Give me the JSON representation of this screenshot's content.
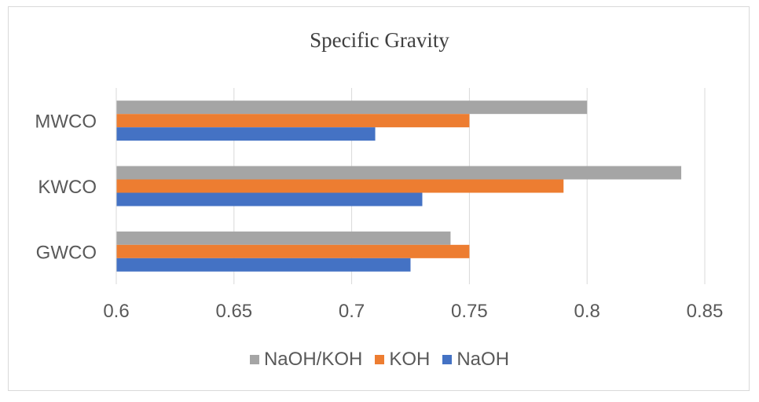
{
  "chart_data": {
    "type": "bar",
    "orientation": "horizontal",
    "title": "Specific Gravity",
    "categories": [
      "MWCO",
      "KWCO",
      "GWCO"
    ],
    "series": [
      {
        "name": "NaOH/KOH",
        "color": "#a5a5a5",
        "values": [
          0.8,
          0.84,
          0.742
        ]
      },
      {
        "name": "KOH",
        "color": "#ed7d31",
        "values": [
          0.75,
          0.79,
          0.75
        ]
      },
      {
        "name": "NaOH",
        "color": "#4472c4",
        "values": [
          0.71,
          0.73,
          0.725
        ]
      }
    ],
    "xlim": [
      0.6,
      0.85
    ],
    "xticks": [
      "0.6",
      "0.65",
      "0.7",
      "0.75",
      "0.8",
      "0.85"
    ],
    "xlabel": "",
    "ylabel": "",
    "grid": "vertical",
    "legend_position": "bottom"
  }
}
